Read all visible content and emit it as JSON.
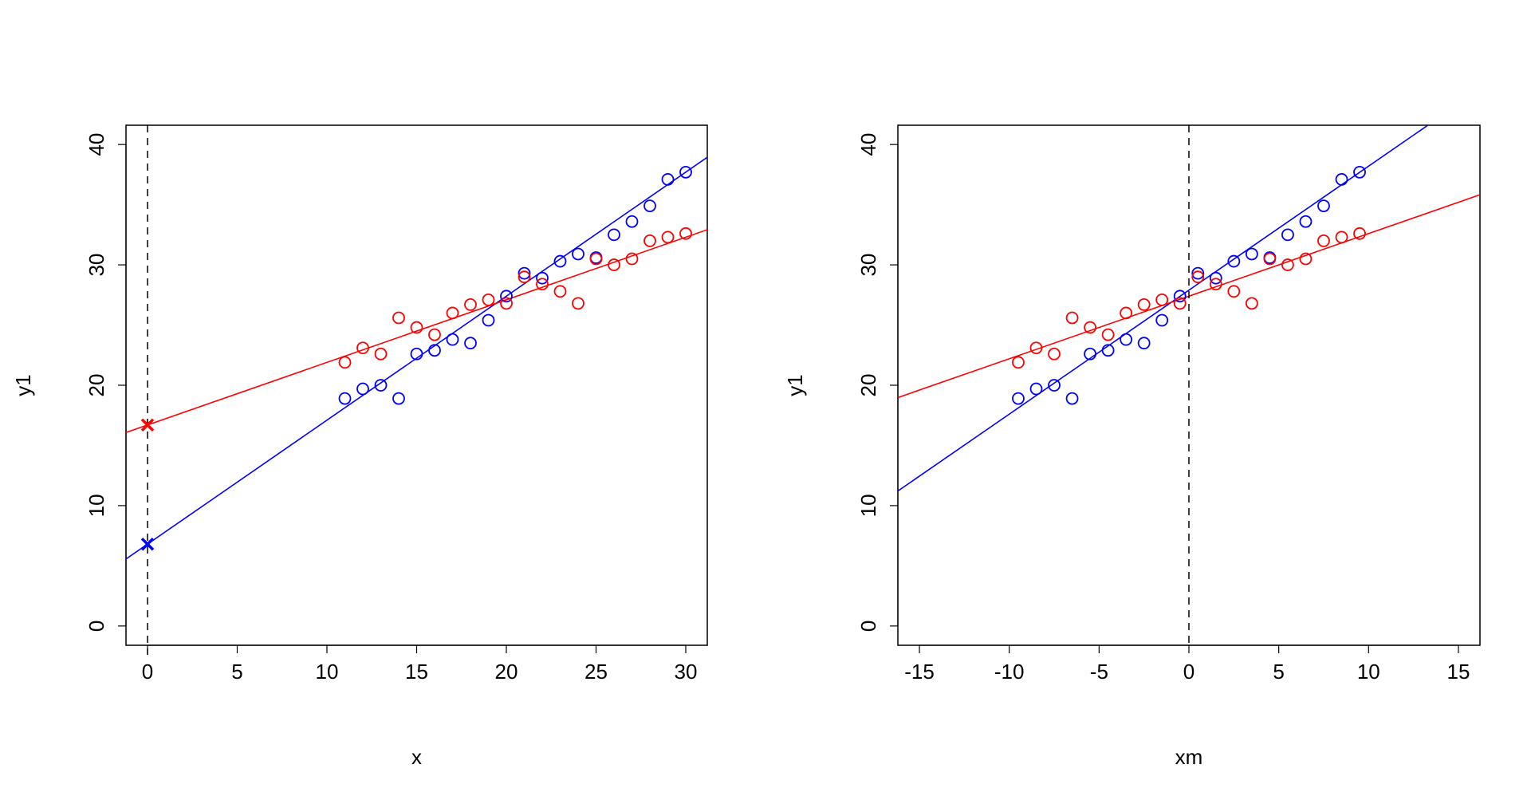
{
  "chart_data": [
    {
      "type": "scatter",
      "title": "",
      "xlabel": "x",
      "ylabel": "y1",
      "xlim": [
        -1.2,
        31.2
      ],
      "ylim": [
        -1.6,
        41.6
      ],
      "xticks": [
        0,
        5,
        10,
        15,
        20,
        25,
        30
      ],
      "yticks": [
        0,
        10,
        20,
        30,
        40
      ],
      "vline": {
        "x": 0,
        "style": "dashed",
        "color": "#000000"
      },
      "grid": false,
      "legend": null,
      "series": [
        {
          "name": "blue",
          "color": "#0000FF",
          "marker": "open-circle",
          "x": [
            11,
            12,
            13,
            14,
            15,
            16,
            17,
            18,
            19,
            20,
            21,
            22,
            23,
            24,
            25,
            26,
            27,
            28,
            29,
            30
          ],
          "y": [
            18.9,
            19.7,
            20.0,
            18.9,
            22.6,
            22.9,
            23.8,
            23.5,
            25.4,
            27.4,
            29.3,
            28.9,
            30.3,
            30.9,
            30.6,
            32.5,
            33.6,
            34.9,
            37.1,
            37.7
          ]
        },
        {
          "name": "red",
          "color": "#FF0000",
          "marker": "open-circle",
          "x": [
            11,
            12,
            13,
            14,
            15,
            16,
            17,
            18,
            19,
            20,
            21,
            22,
            23,
            24,
            25,
            26,
            27,
            28,
            29,
            30
          ],
          "y": [
            21.9,
            23.1,
            22.6,
            25.6,
            24.8,
            24.2,
            26.0,
            26.7,
            27.1,
            26.8,
            29.0,
            28.4,
            27.8,
            26.8,
            30.5,
            30.0,
            30.5,
            32.0,
            32.3,
            32.6
          ]
        }
      ],
      "fit_lines": [
        {
          "name": "blue-fit",
          "color": "#0000FF",
          "intercept": 6.8,
          "slope": 1.03
        },
        {
          "name": "red-fit",
          "color": "#FF0000",
          "intercept": 16.7,
          "slope": 0.52
        }
      ],
      "annotations": [
        {
          "type": "x-marker",
          "x": 0,
          "y": 6.8,
          "color": "#0000FF",
          "label": "blue intercept"
        },
        {
          "type": "x-marker",
          "x": 0,
          "y": 16.7,
          "color": "#FF0000",
          "label": "red intercept"
        }
      ]
    },
    {
      "type": "scatter",
      "title": "",
      "xlabel": "xm",
      "ylabel": "y1",
      "xlim": [
        -16.2,
        16.2
      ],
      "ylim": [
        -1.6,
        41.6
      ],
      "xticks": [
        -15,
        -10,
        -5,
        0,
        5,
        10,
        15
      ],
      "yticks": [
        0,
        10,
        20,
        30,
        40
      ],
      "vline": {
        "x": 0,
        "style": "dashed",
        "color": "#000000"
      },
      "grid": false,
      "legend": null,
      "series": [
        {
          "name": "blue",
          "color": "#0000FF",
          "marker": "open-circle",
          "x": [
            -9.5,
            -8.5,
            -7.5,
            -6.5,
            -5.5,
            -4.5,
            -3.5,
            -2.5,
            -1.5,
            -0.5,
            0.5,
            1.5,
            2.5,
            3.5,
            4.5,
            5.5,
            6.5,
            7.5,
            8.5,
            9.5
          ],
          "y": [
            18.9,
            19.7,
            20.0,
            18.9,
            22.6,
            22.9,
            23.8,
            23.5,
            25.4,
            27.4,
            29.3,
            28.9,
            30.3,
            30.9,
            30.6,
            32.5,
            33.6,
            34.9,
            37.1,
            37.7
          ]
        },
        {
          "name": "red",
          "color": "#FF0000",
          "marker": "open-circle",
          "x": [
            -9.5,
            -8.5,
            -7.5,
            -6.5,
            -5.5,
            -4.5,
            -3.5,
            -2.5,
            -1.5,
            -0.5,
            0.5,
            1.5,
            2.5,
            3.5,
            4.5,
            5.5,
            6.5,
            7.5,
            8.5,
            9.5
          ],
          "y": [
            21.9,
            23.1,
            22.6,
            25.6,
            24.8,
            24.2,
            26.0,
            26.7,
            27.1,
            26.8,
            29.0,
            28.4,
            27.8,
            26.8,
            30.5,
            30.0,
            30.5,
            32.0,
            32.3,
            32.6
          ]
        }
      ],
      "fit_lines": [
        {
          "name": "blue-fit",
          "color": "#0000FF",
          "intercept": 27.9,
          "slope": 1.03
        },
        {
          "name": "red-fit",
          "color": "#FF0000",
          "intercept": 27.4,
          "slope": 0.52
        }
      ],
      "annotations": []
    }
  ]
}
